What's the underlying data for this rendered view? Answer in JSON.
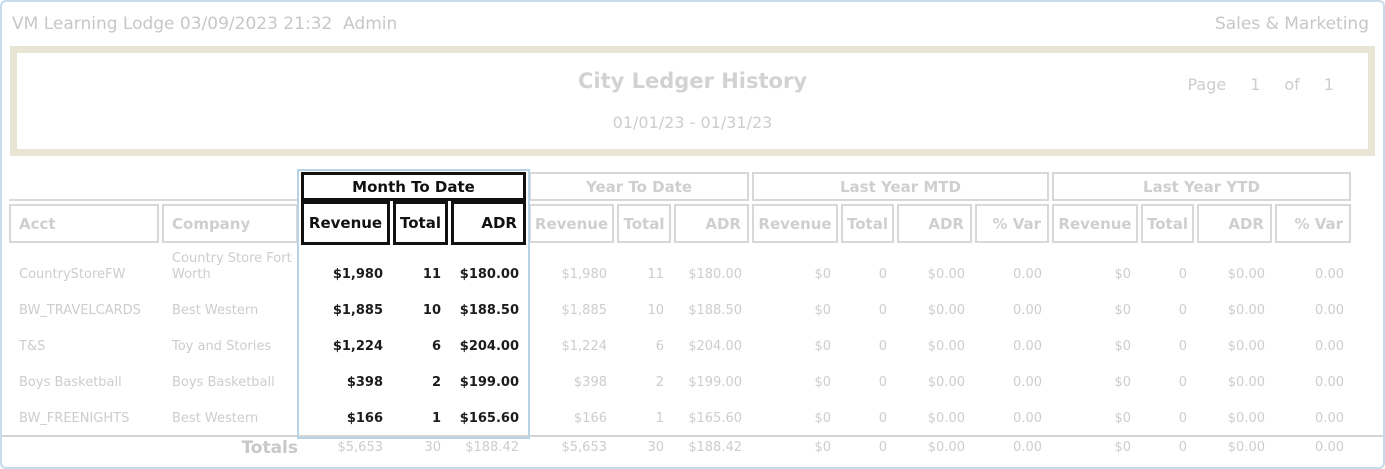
{
  "topbar": {
    "left": "VM Learning Lodge 03/09/2023 21:32  Admin",
    "right": "Sales & Marketing"
  },
  "report_header": {
    "title": "City Ledger History",
    "date_range": "01/01/23 - 01/31/23",
    "page_label": "Page",
    "page_number": "1",
    "of_label": "of",
    "page_total": "1"
  },
  "table": {
    "row_headers": [
      "Acct",
      "Company"
    ],
    "groups": [
      {
        "key": "mtd",
        "label": "Month To Date",
        "highlighted": true,
        "columns": [
          "Revenue",
          "Total",
          "ADR"
        ]
      },
      {
        "key": "ytd",
        "label": "Year To Date",
        "highlighted": false,
        "columns": [
          "Revenue",
          "Total",
          "ADR"
        ]
      },
      {
        "key": "ly_mtd",
        "label": "Last Year MTD",
        "highlighted": false,
        "columns": [
          "Revenue",
          "Total",
          "ADR",
          "% Var"
        ]
      },
      {
        "key": "ly_ytd",
        "label": "Last Year YTD",
        "highlighted": false,
        "columns": [
          "Revenue",
          "Total",
          "ADR",
          "% Var"
        ]
      }
    ],
    "rows": [
      {
        "acct": "CountryStoreFW",
        "company": "Country Store Fort Worth",
        "mtd": [
          "$1,980",
          "11",
          "$180.00"
        ],
        "ytd": [
          "$1,980",
          "11",
          "$180.00"
        ],
        "ly_mtd": [
          "$0",
          "0",
          "$0.00",
          "0.00"
        ],
        "ly_ytd": [
          "$0",
          "0",
          "$0.00",
          "0.00"
        ]
      },
      {
        "acct": "BW_TRAVELCARDS",
        "company": "Best Western",
        "mtd": [
          "$1,885",
          "10",
          "$188.50"
        ],
        "ytd": [
          "$1,885",
          "10",
          "$188.50"
        ],
        "ly_mtd": [
          "$0",
          "0",
          "$0.00",
          "0.00"
        ],
        "ly_ytd": [
          "$0",
          "0",
          "$0.00",
          "0.00"
        ]
      },
      {
        "acct": "T&S",
        "company": "Toy and Stories",
        "mtd": [
          "$1,224",
          "6",
          "$204.00"
        ],
        "ytd": [
          "$1,224",
          "6",
          "$204.00"
        ],
        "ly_mtd": [
          "$0",
          "0",
          "$0.00",
          "0.00"
        ],
        "ly_ytd": [
          "$0",
          "0",
          "$0.00",
          "0.00"
        ]
      },
      {
        "acct": "Boys Basketball",
        "company": "Boys Basketball",
        "mtd": [
          "$398",
          "2",
          "$199.00"
        ],
        "ytd": [
          "$398",
          "2",
          "$199.00"
        ],
        "ly_mtd": [
          "$0",
          "0",
          "$0.00",
          "0.00"
        ],
        "ly_ytd": [
          "$0",
          "0",
          "$0.00",
          "0.00"
        ]
      },
      {
        "acct": "BW_FREENIGHTS",
        "company": "Best Western",
        "mtd": [
          "$166",
          "1",
          "$165.60"
        ],
        "ytd": [
          "$166",
          "1",
          "$165.60"
        ],
        "ly_mtd": [
          "$0",
          "0",
          "$0.00",
          "0.00"
        ],
        "ly_ytd": [
          "$0",
          "0",
          "$0.00",
          "0.00"
        ]
      }
    ],
    "totals": {
      "label": "Totals",
      "mtd": [
        "$5,653",
        "30",
        "$188.42"
      ],
      "ytd": [
        "$5,653",
        "30",
        "$188.42"
      ],
      "ly_mtd": [
        "$0",
        "0",
        "$0.00",
        "0.00"
      ],
      "ly_ytd": [
        "$0",
        "0",
        "$0.00",
        "0.00"
      ]
    }
  },
  "colors": {
    "page_border_blue": "#c7dbea",
    "selection_blue": "#b7d3e8",
    "header_beige": "#e8e5d4",
    "muted_text": "#cdcdcd",
    "highlight_text": "#111111",
    "grid_border_gray": "#d8d8d8"
  }
}
